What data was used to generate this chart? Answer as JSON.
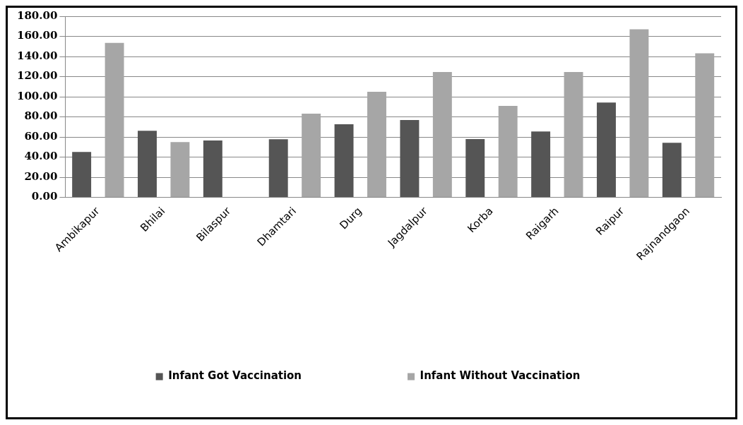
{
  "chart_data": {
    "type": "bar",
    "categories": [
      "Ambikapur",
      "Bhilai",
      "Bilaspur",
      "Dhamtari",
      "Durg",
      "Jagdalpur",
      "Korba",
      "Raigarh",
      "Raipur",
      "Rajnandgaon"
    ],
    "series": [
      {
        "name": "Infant Got Vaccination",
        "color": "#555555",
        "values": [
          45.2,
          66.2,
          56.5,
          57.8,
          72.7,
          76.8,
          57.9,
          65.5,
          94.3,
          54.2
        ]
      },
      {
        "name": "Infant Without Vaccination",
        "color": "#a6a6a6",
        "values": [
          153.6,
          54.9,
          null,
          83.1,
          104.9,
          124.6,
          90.9,
          124.6,
          167.0,
          143.2
        ]
      }
    ],
    "ylim": [
      0,
      180
    ],
    "yticks": [
      {
        "value": 0,
        "label": "0.00"
      },
      {
        "value": 20,
        "label": "20.00"
      },
      {
        "value": 40,
        "label": "40.00"
      },
      {
        "value": 60,
        "label": "60.00"
      },
      {
        "value": 80,
        "label": "80.00"
      },
      {
        "value": 100,
        "label": "100.00"
      },
      {
        "value": 120,
        "label": "120.00"
      },
      {
        "value": 140,
        "label": "140.00"
      },
      {
        "value": 160,
        "label": "160.00"
      },
      {
        "value": 180,
        "label": "180.00"
      }
    ],
    "grid": "y",
    "legend": "bottom"
  }
}
